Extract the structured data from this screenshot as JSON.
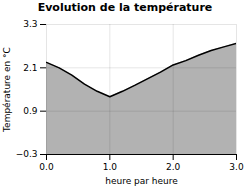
{
  "chart_data": {
    "type": "area",
    "title": "Evolution de la température",
    "xlabel": "heure par heure",
    "ylabel": "Température en °C",
    "x": [
      0,
      0.2,
      0.4,
      0.6,
      0.8,
      1.0,
      1.2,
      1.4,
      1.6,
      1.8,
      2.0,
      2.2,
      2.4,
      2.6,
      2.8,
      3.0
    ],
    "values": [
      2.25,
      2.1,
      1.9,
      1.65,
      1.45,
      1.3,
      1.45,
      1.62,
      1.8,
      1.98,
      2.18,
      2.3,
      2.45,
      2.58,
      2.68,
      2.78
    ],
    "xlim": [
      0,
      3
    ],
    "xticks": [
      0,
      1,
      2,
      3
    ],
    "ylim": [
      -0.3,
      3.3
    ],
    "yticks": [
      -0.3,
      0.9,
      2.1,
      3.3
    ],
    "grid": true
  }
}
